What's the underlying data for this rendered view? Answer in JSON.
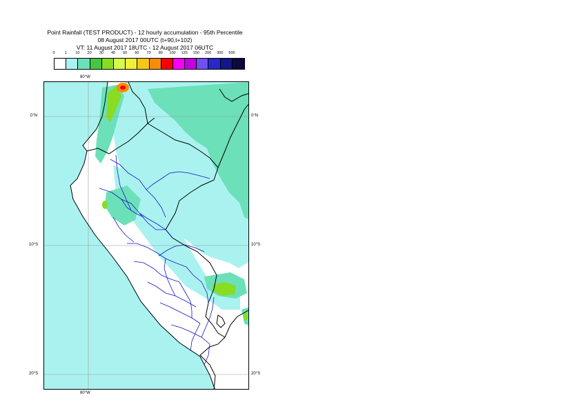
{
  "title": {
    "line1": "Point Rainfall (TEST PRODUCT) - 12 hourly accumulation - 95th Percentile",
    "line2": "08 August 2017 00UTC (t+90,t+102)",
    "line3": "VT: 11 August 2017 18UTC - 12 August 2017 06UTC"
  },
  "legend": {
    "ticks": [
      "0",
      "1",
      "10",
      "20",
      "30",
      "40",
      "50",
      "60",
      "70",
      "80",
      "100",
      "125",
      "150",
      "200",
      "300",
      "500"
    ],
    "colors": [
      "#ffffff",
      "#aaf2f0",
      "#6ce0b8",
      "#44c844",
      "#88dc22",
      "#d8f84c",
      "#f2f036",
      "#f6c814",
      "#f88c08",
      "#fa0000",
      "#f800f8",
      "#c000e0",
      "#7050f0",
      "#2828c8",
      "#14148c",
      "#0a0a40"
    ]
  },
  "axes": {
    "lat_labels": [
      "0°N",
      "10°S",
      "20°S"
    ],
    "lon_labels": [
      "80°W",
      "80°W"
    ]
  },
  "map": {
    "ocean_color": "#aaf2f0",
    "land_dry_color": "#ffffff",
    "wet_color": "#6ce0b8",
    "heavy_color": "#88dc22",
    "peak_color": "#f88c08",
    "extreme_color": "#fa0000",
    "border_color": "#000000",
    "province_color": "#1414c8"
  }
}
